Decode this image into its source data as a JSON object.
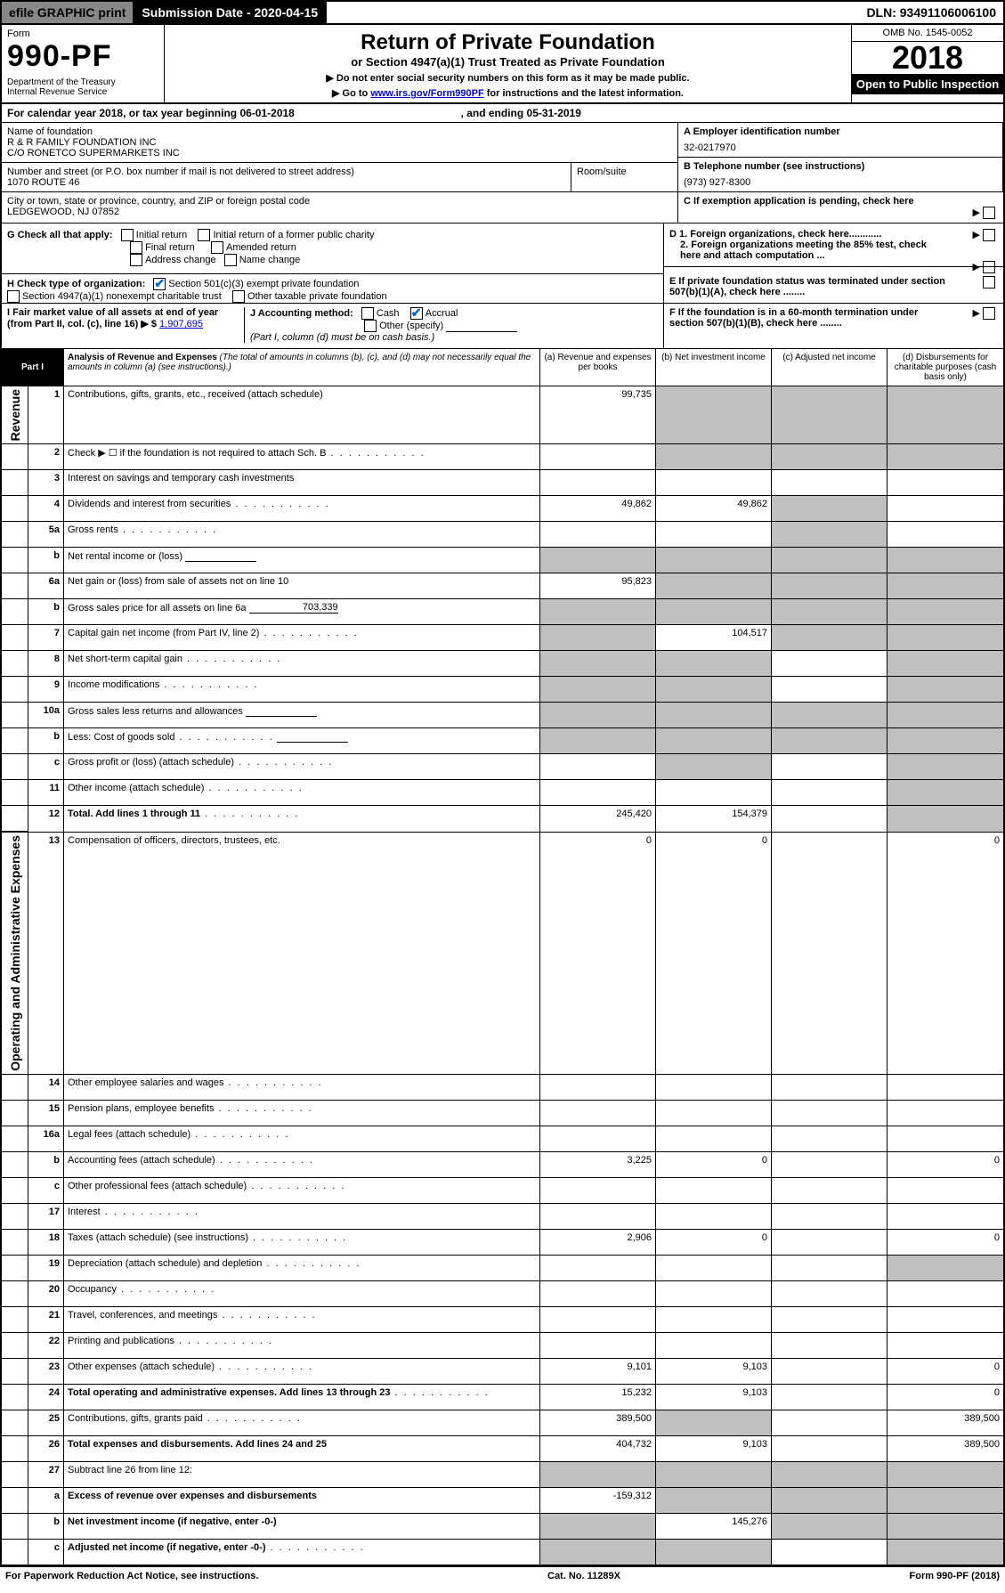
{
  "topbar": {
    "efile": "efile GRAPHIC print",
    "subdate_lbl": "Submission Date - 2020-04-15",
    "dln": "DLN: 93491106006100"
  },
  "header": {
    "formword": "Form",
    "formno": "990-PF",
    "dept": "Department of the Treasury\nInternal Revenue Service",
    "title": "Return of Private Foundation",
    "sub": "or Section 4947(a)(1) Trust Treated as Private Foundation",
    "note1": "▶ Do not enter social security numbers on this form as it may be made public.",
    "note2_pre": "▶ Go to ",
    "note2_link": "www.irs.gov/Form990PF",
    "note2_post": " for instructions and the latest information.",
    "omb": "OMB No. 1545-0052",
    "year": "2018",
    "open": "Open to Public Inspection"
  },
  "cal": {
    "pre": "For calendar year 2018, or tax year beginning ",
    "begin": "06-01-2018",
    "mid": ", and ending ",
    "end": "05-31-2019"
  },
  "org": {
    "name_lbl": "Name of foundation",
    "name1": "R & R FAMILY FOUNDATION INC",
    "name2": "C/O RONETCO SUPERMARKETS INC",
    "addr_lbl": "Number and street (or P.O. box number if mail is not delivered to street address)",
    "addr": "1070 ROUTE 46",
    "room_lbl": "Room/suite",
    "city_lbl": "City or town, state or province, country, and ZIP or foreign postal code",
    "city": "LEDGEWOOD, NJ  07852",
    "ein_lbl": "A Employer identification number",
    "ein": "32-0217970",
    "tel_lbl": "B Telephone number (see instructions)",
    "tel": "(973) 927-8300",
    "c_lbl": "C If exemption application is pending, check here",
    "d1": "D 1. Foreign organizations, check here............",
    "d2": "2. Foreign organizations meeting the 85% test, check here and attach computation ...",
    "e": "E If private foundation status was terminated under section 507(b)(1)(A), check here ........",
    "f": "F If the foundation is in a 60-month termination under section 507(b)(1)(B), check here ........"
  },
  "g": {
    "lbl": "G Check all that apply:",
    "opts": [
      "Initial return",
      "Initial return of a former public charity",
      "Final return",
      "Amended return",
      "Address change",
      "Name change"
    ]
  },
  "h": {
    "lbl": "H Check type of organization:",
    "o1": "Section 501(c)(3) exempt private foundation",
    "o2": "Section 4947(a)(1) nonexempt charitable trust",
    "o3": "Other taxable private foundation"
  },
  "i": {
    "lbl": "I Fair market value of all assets at end of year (from Part II, col. (c), line 16) ▶ $",
    "val": "1,907,695"
  },
  "j": {
    "lbl": "J Accounting method:",
    "cash": "Cash",
    "accrual": "Accrual",
    "other": "Other (specify)",
    "note": "(Part I, column (d) must be on cash basis.)"
  },
  "part1": {
    "tag": "Part I",
    "title": "Analysis of Revenue and Expenses",
    "title_note": "(The total of amounts in columns (b), (c), and (d) may not necessarily equal the amounts in column (a) (see instructions).)",
    "cols": [
      "(a) Revenue and expenses per books",
      "(b) Net investment income",
      "(c) Adjusted net income",
      "(d) Disbursements for charitable purposes (cash basis only)"
    ],
    "side_revenue": "Revenue",
    "side_opex": "Operating and Administrative Expenses"
  },
  "rows": [
    {
      "n": "1",
      "t": "Contributions, gifts, grants, etc., received (attach schedule)",
      "a": "99,735",
      "bsh": 1,
      "csh": 1,
      "dsh": 1
    },
    {
      "n": "2",
      "t": "Check ▶ ☐ if the foundation is not required to attach Sch. B",
      "dots": 1,
      "bsh": 1,
      "csh": 1,
      "dsh": 1
    },
    {
      "n": "3",
      "t": "Interest on savings and temporary cash investments"
    },
    {
      "n": "4",
      "t": "Dividends and interest from securities",
      "dots": 1,
      "a": "49,862",
      "b": "49,862",
      "csh": 1
    },
    {
      "n": "5a",
      "t": "Gross rents",
      "dots": 1,
      "csh": 1
    },
    {
      "n": "b",
      "t": "Net rental income or (loss)",
      "blank": 1,
      "ash": 1,
      "bsh": 1,
      "csh": 1,
      "dsh": 1
    },
    {
      "n": "6a",
      "t": "Net gain or (loss) from sale of assets not on line 10",
      "a": "95,823",
      "bsh": 1,
      "csh": 1,
      "dsh": 1
    },
    {
      "n": "b",
      "t": "Gross sales price for all assets on line 6a",
      "blankval": "703,339",
      "ash": 1,
      "bsh": 1,
      "csh": 1,
      "dsh": 1
    },
    {
      "n": "7",
      "t": "Capital gain net income (from Part IV, line 2)",
      "dots": 1,
      "ash": 1,
      "b": "104,517",
      "csh": 1,
      "dsh": 1
    },
    {
      "n": "8",
      "t": "Net short-term capital gain",
      "dots": 1,
      "ash": 1,
      "bsh": 1,
      "dsh": 1
    },
    {
      "n": "9",
      "t": "Income modifications",
      "dots": 1,
      "ash": 1,
      "bsh": 1,
      "dsh": 1
    },
    {
      "n": "10a",
      "t": "Gross sales less returns and allowances",
      "blank": 1,
      "ash": 1,
      "bsh": 1,
      "csh": 1,
      "dsh": 1
    },
    {
      "n": "b",
      "t": "Less: Cost of goods sold",
      "dots": 1,
      "blank": 1,
      "ash": 1,
      "bsh": 1,
      "csh": 1,
      "dsh": 1
    },
    {
      "n": "c",
      "t": "Gross profit or (loss) (attach schedule)",
      "dots": 1,
      "bsh": 1,
      "dsh": 1
    },
    {
      "n": "11",
      "t": "Other income (attach schedule)",
      "dots": 1,
      "dsh": 1
    },
    {
      "n": "12",
      "t": "Total. Add lines 1 through 11",
      "dots": 1,
      "bold": 1,
      "a": "245,420",
      "b": "154,379",
      "dsh": 1
    },
    {
      "n": "13",
      "t": "Compensation of officers, directors, trustees, etc.",
      "a": "0",
      "b": "0",
      "d": "0",
      "sec": "opex"
    },
    {
      "n": "14",
      "t": "Other employee salaries and wages",
      "dots": 1
    },
    {
      "n": "15",
      "t": "Pension plans, employee benefits",
      "dots": 1
    },
    {
      "n": "16a",
      "t": "Legal fees (attach schedule)",
      "dots": 1
    },
    {
      "n": "b",
      "t": "Accounting fees (attach schedule)",
      "dots": 1,
      "a": "3,225",
      "b": "0",
      "d": "0"
    },
    {
      "n": "c",
      "t": "Other professional fees (attach schedule)",
      "dots": 1
    },
    {
      "n": "17",
      "t": "Interest",
      "dots": 1
    },
    {
      "n": "18",
      "t": "Taxes (attach schedule) (see instructions)",
      "dots": 1,
      "a": "2,906",
      "b": "0",
      "d": "0"
    },
    {
      "n": "19",
      "t": "Depreciation (attach schedule) and depletion",
      "dots": 1,
      "dsh": 1
    },
    {
      "n": "20",
      "t": "Occupancy",
      "dots": 1
    },
    {
      "n": "21",
      "t": "Travel, conferences, and meetings",
      "dots": 1
    },
    {
      "n": "22",
      "t": "Printing and publications",
      "dots": 1
    },
    {
      "n": "23",
      "t": "Other expenses (attach schedule)",
      "dots": 1,
      "a": "9,101",
      "b": "9,103",
      "d": "0"
    },
    {
      "n": "24",
      "t": "Total operating and administrative expenses. Add lines 13 through 23",
      "dots": 1,
      "bold": 1,
      "a": "15,232",
      "b": "9,103",
      "d": "0"
    },
    {
      "n": "25",
      "t": "Contributions, gifts, grants paid",
      "dots": 1,
      "a": "389,500",
      "bsh": 1,
      "d": "389,500"
    },
    {
      "n": "26",
      "t": "Total expenses and disbursements. Add lines 24 and 25",
      "bold": 1,
      "a": "404,732",
      "b": "9,103",
      "d": "389,500"
    },
    {
      "n": "27",
      "t": "Subtract line 26 from line 12:",
      "ash": 1,
      "bsh": 1,
      "csh": 1,
      "dsh": 1
    },
    {
      "n": "a",
      "t": "Excess of revenue over expenses and disbursements",
      "bold": 1,
      "a": "-159,312",
      "bsh": 1,
      "csh": 1,
      "dsh": 1
    },
    {
      "n": "b",
      "t": "Net investment income (if negative, enter -0-)",
      "bold": 1,
      "ash": 1,
      "b": "145,276",
      "csh": 1,
      "dsh": 1
    },
    {
      "n": "c",
      "t": "Adjusted net income (if negative, enter -0-)",
      "dots": 1,
      "bold": 1,
      "ash": 1,
      "bsh": 1,
      "dsh": 1
    }
  ],
  "footer": {
    "l": "For Paperwork Reduction Act Notice, see instructions.",
    "c": "Cat. No. 11289X",
    "r": "Form 990-PF (2018)"
  },
  "style": {
    "shade": "#bfbfbf",
    "link": "#0000cc",
    "check": "#0066cc"
  }
}
